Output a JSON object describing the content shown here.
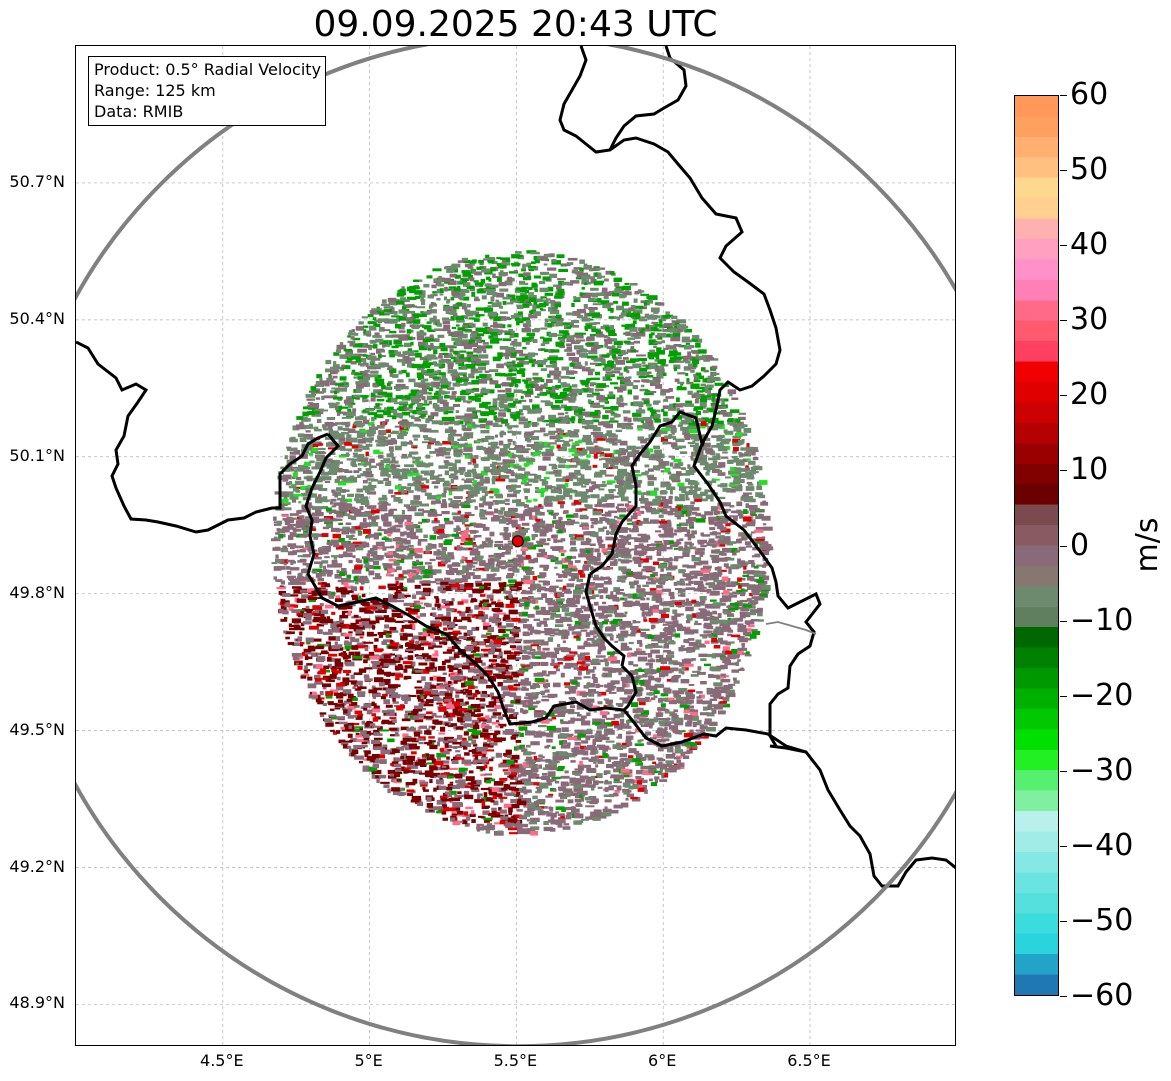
{
  "title": "09.09.2025 20:43 UTC",
  "info": {
    "product": "Product: 0.5° Radial Velocity",
    "range": "Range: 125 km",
    "data": "Data: RMIB"
  },
  "axes": {
    "lat_labels": [
      "50.7°N",
      "50.4°N",
      "50.1°N",
      "49.8°N",
      "49.5°N",
      "49.2°N",
      "48.9°N"
    ],
    "lon_labels": [
      "4.5°E",
      "5°E",
      "5.5°E",
      "6°E",
      "6.5°E"
    ],
    "lat_values": [
      50.7,
      50.4,
      50.1,
      49.8,
      49.5,
      49.2,
      48.9
    ],
    "lon_values": [
      4.5,
      5.0,
      5.5,
      6.0,
      6.5
    ],
    "lat_range": [
      48.8,
      51.0
    ],
    "lon_range": [
      4.0,
      7.0
    ],
    "grid": true
  },
  "radar": {
    "site_lon": 5.505,
    "site_lat": 49.915,
    "site_color": "#e00000",
    "range_ring_color": "#808080"
  },
  "colorbar": {
    "label": "m/s",
    "ticks": [
      "60",
      "50",
      "40",
      "30",
      "20",
      "10",
      "0",
      "−10",
      "−20",
      "−30",
      "−40",
      "−50",
      "−60"
    ],
    "tick_values": [
      60,
      50,
      40,
      30,
      20,
      10,
      0,
      -10,
      -20,
      -30,
      -40,
      -50,
      -60
    ],
    "range": [
      -60,
      60
    ],
    "colors": [
      "#1f78b4",
      "#21a4c8",
      "#29d4dc",
      "#3adcdc",
      "#55e0de",
      "#6ae4e0",
      "#86e8e4",
      "#a2ece8",
      "#b8f0ec",
      "#80f0a0",
      "#55f070",
      "#22f022",
      "#00e000",
      "#00c800",
      "#00b000",
      "#009800",
      "#008000",
      "#006800",
      "#5f7f5f",
      "#6e8a6e",
      "#867870",
      "#886a78",
      "#8a5a62",
      "#7a4a4e",
      "#6b0000",
      "#800000",
      "#9a0000",
      "#b40000",
      "#cc0000",
      "#e00000",
      "#f00000",
      "#ff4060",
      "#ff5a70",
      "#ff6a88",
      "#ff80b4",
      "#ff90c8",
      "#ffa0c0",
      "#ffb0b0",
      "#ffd090",
      "#ffd890",
      "#ffc080",
      "#ffb070",
      "#ffa060",
      "#ff9858"
    ]
  },
  "legend_regions": {
    "land_border": "black",
    "echo_colors": {
      "gray_green": "#6e8a6e",
      "gray_pink": "#886a78",
      "dark_red": "#7a0000",
      "green": "#00a000",
      "bright_green": "#22e022",
      "red": "#e00000",
      "pink": "#ff6a88"
    }
  }
}
